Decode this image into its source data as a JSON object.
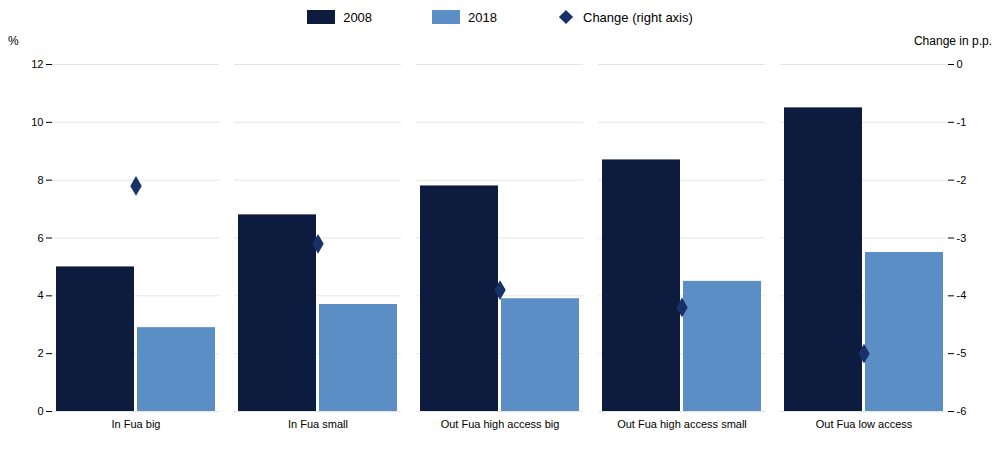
{
  "chart_data": {
    "type": "bar",
    "categories": [
      "In Fua big",
      "In Fua small",
      "Out Fua high access big",
      "Out Fua high access small",
      "Out Fua low access"
    ],
    "series": [
      {
        "name": "2008",
        "type": "bar",
        "color": "#0d1b3e",
        "values": [
          5.0,
          6.8,
          7.8,
          8.7,
          10.5
        ]
      },
      {
        "name": "2018",
        "type": "bar",
        "color": "#5b8ec4",
        "values": [
          2.9,
          3.7,
          3.9,
          4.5,
          5.5
        ]
      },
      {
        "name": "Change (right axis)",
        "type": "scatter",
        "marker": "diamond",
        "axis": "y2",
        "color": "#1a3068",
        "values": [
          -2.1,
          -3.1,
          -3.9,
          -4.2,
          -5.0
        ]
      }
    ],
    "ylabel": "%",
    "y2label": "Change in p.p.",
    "ylim": [
      0,
      12
    ],
    "yticks": [
      0,
      2,
      4,
      6,
      8,
      10,
      12
    ],
    "y2lim": [
      -6,
      0
    ],
    "y2ticks": [
      0,
      -1,
      -2,
      -3,
      -4,
      -5,
      -6
    ],
    "grid": true,
    "legend": "top"
  }
}
